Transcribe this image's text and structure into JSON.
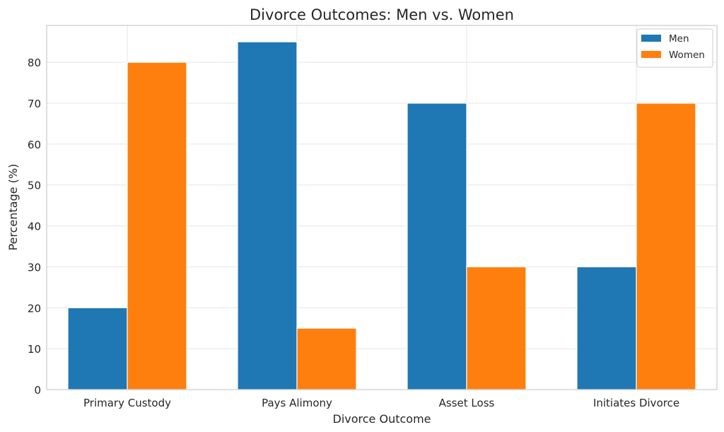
{
  "chart_data": {
    "type": "bar",
    "title": "Divorce Outcomes: Men vs. Women",
    "xlabel": "Divorce Outcome",
    "ylabel": "Percentage (%)",
    "categories": [
      "Primary Custody",
      "Pays Alimony",
      "Asset Loss",
      "Initiates Divorce"
    ],
    "series": [
      {
        "name": "Men",
        "color": "#1f77b4",
        "values": [
          20,
          85,
          70,
          30
        ]
      },
      {
        "name": "Women",
        "color": "#ff7f0e",
        "values": [
          80,
          15,
          30,
          70
        ]
      }
    ],
    "ylim": [
      0,
      89
    ],
    "yticks": [
      0,
      10,
      20,
      30,
      40,
      50,
      60,
      70,
      80
    ],
    "grid": true,
    "legend_position": "top-right"
  }
}
